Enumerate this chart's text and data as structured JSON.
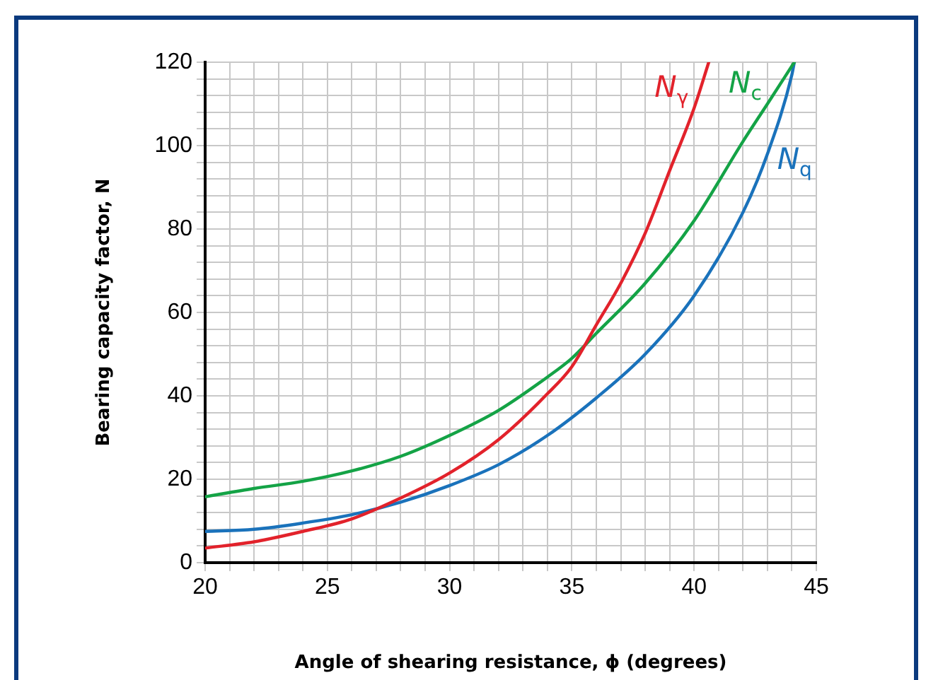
{
  "chart_data": {
    "type": "line",
    "xlabel": "Angle of shearing resistance, ϕ (degrees)",
    "ylabel": "Bearing capacity factor, N",
    "xlim": [
      20,
      45
    ],
    "ylim": [
      0,
      120
    ],
    "xticks": [
      20,
      {
        "value": 21,
        "label": null
      },
      {
        "value": 22,
        "label": null
      },
      {
        "value": 23,
        "label": null
      },
      {
        "value": 24,
        "label": null
      },
      25,
      {
        "value": 26,
        "label": null
      },
      {
        "value": 27,
        "label": null
      },
      {
        "value": 28,
        "label": null
      },
      {
        "value": 29,
        "label": null
      },
      30,
      {
        "value": 31,
        "label": null
      },
      {
        "value": 32,
        "label": null
      },
      {
        "value": 33,
        "label": null
      },
      {
        "value": 34,
        "label": null
      },
      35,
      {
        "value": 36,
        "label": null
      },
      {
        "value": 37,
        "label": null
      },
      {
        "value": 38,
        "label": null
      },
      {
        "value": 39,
        "label": null
      },
      40,
      {
        "value": 41,
        "label": null
      },
      {
        "value": 42,
        "label": null
      },
      {
        "value": 43,
        "label": null
      },
      {
        "value": 44,
        "label": null
      },
      45
    ],
    "yticks": [
      0,
      {
        "value": 4,
        "label": null
      },
      {
        "value": 8,
        "label": null
      },
      {
        "value": 12,
        "label": null
      },
      {
        "value": 16,
        "label": null
      },
      20,
      {
        "value": 24,
        "label": null
      },
      {
        "value": 28,
        "label": null
      },
      {
        "value": 32,
        "label": null
      },
      {
        "value": 36,
        "label": null
      },
      40,
      {
        "value": 44,
        "label": null
      },
      {
        "value": 48,
        "label": null
      },
      {
        "value": 52,
        "label": null
      },
      {
        "value": 56,
        "label": null
      },
      60,
      {
        "value": 64,
        "label": null
      },
      {
        "value": 68,
        "label": null
      },
      {
        "value": 72,
        "label": null
      },
      {
        "value": 76,
        "label": null
      },
      80,
      {
        "value": 84,
        "label": null
      },
      {
        "value": 88,
        "label": null
      },
      {
        "value": 92,
        "label": null
      },
      {
        "value": 96,
        "label": null
      },
      100,
      {
        "value": 104,
        "label": null
      },
      {
        "value": 108,
        "label": null
      },
      {
        "value": 112,
        "label": null
      },
      {
        "value": 116,
        "label": null
      },
      120
    ],
    "grid": true,
    "legend": false,
    "marker": "none",
    "line_style": "solid",
    "series": [
      {
        "name": "N$_{γ}$",
        "color": "#e2222b",
        "x": [
          20,
          22,
          24,
          26,
          28,
          30,
          32,
          34,
          35,
          36,
          37,
          38,
          39,
          40,
          40.6
        ],
        "values": [
          3.5,
          5,
          7.5,
          10.5,
          15.5,
          21.5,
          29.5,
          40.5,
          47,
          57,
          67,
          79,
          94,
          109,
          120
        ]
      },
      {
        "name": "N$_{c}$",
        "color": "#14a346",
        "x": [
          20,
          22,
          24,
          26,
          28,
          30,
          32,
          34,
          35,
          36,
          38,
          40,
          42,
          43,
          44.1
        ],
        "values": [
          15.8,
          17.8,
          19.5,
          22,
          25.5,
          30.5,
          36.5,
          44.5,
          49,
          55,
          67,
          82,
          101,
          110,
          120
        ]
      },
      {
        "name": "N$_{q}$",
        "color": "#1a72bb",
        "x": [
          20,
          22,
          24,
          26,
          28,
          30,
          32,
          34,
          36,
          38,
          40,
          42,
          43,
          44,
          44.1
        ],
        "values": [
          7.5,
          8,
          9.5,
          11.5,
          14.5,
          18.5,
          23.5,
          30.5,
          39.5,
          50,
          64,
          84,
          98,
          117,
          120
        ]
      }
    ]
  }
}
